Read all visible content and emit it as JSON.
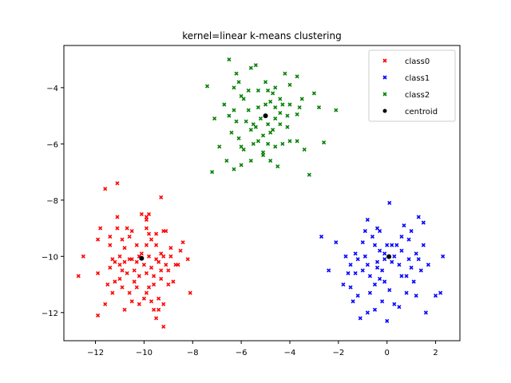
{
  "chart_data": {
    "type": "scatter",
    "title": "kernel=linear k-means clustering",
    "xlabel": "",
    "ylabel": "",
    "xlim": [
      -13.3,
      3.0
    ],
    "ylim": [
      -13.0,
      -2.5
    ],
    "xticks": [
      -12,
      -10,
      -8,
      -6,
      -4,
      -2,
      0,
      2
    ],
    "yticks": [
      -12,
      -10,
      -8,
      -6,
      -4
    ],
    "xtick_labels": [
      "−12",
      "−10",
      "−8",
      "−6",
      "−4",
      "−2",
      "0",
      "2"
    ],
    "ytick_labels": [
      "−12",
      "−10",
      "−8",
      "−6",
      "−4"
    ],
    "grid": false,
    "legend_position": "upper right",
    "series": [
      {
        "name": "class0",
        "color": "#ff0000",
        "marker": "x",
        "points": [
          [
            -11.1,
            -7.4
          ],
          [
            -11.6,
            -7.6
          ],
          [
            -9.3,
            -7.9
          ],
          [
            -11.1,
            -8.6
          ],
          [
            -11.8,
            -9.0
          ],
          [
            -10.1,
            -8.5
          ],
          [
            -9.9,
            -8.6
          ],
          [
            -9.8,
            -8.5
          ],
          [
            -9.9,
            -8.7
          ],
          [
            -10.5,
            -9.1
          ],
          [
            -10.6,
            -9.3
          ],
          [
            -10.3,
            -9.6
          ],
          [
            -11.4,
            -9.6
          ],
          [
            -10.8,
            -9.7
          ],
          [
            -9.9,
            -9.6
          ],
          [
            -9.7,
            -9.4
          ],
          [
            -9.5,
            -9.6
          ],
          [
            -9.2,
            -9.1
          ],
          [
            -9.1,
            -9.1
          ],
          [
            -9.5,
            -9.2
          ],
          [
            -8.4,
            -9.5
          ],
          [
            -9.8,
            -9.2
          ],
          [
            -11.1,
            -9.0
          ],
          [
            -11.9,
            -9.4
          ],
          [
            -12.5,
            -10.0
          ],
          [
            -11.2,
            -10.2
          ],
          [
            -11.0,
            -10.3
          ],
          [
            -10.8,
            -10.2
          ],
          [
            -10.6,
            -10.1
          ],
          [
            -10.3,
            -10.2
          ],
          [
            -10.0,
            -10.3
          ],
          [
            -9.8,
            -10.0
          ],
          [
            -9.5,
            -10.1
          ],
          [
            -9.2,
            -10.0
          ],
          [
            -8.9,
            -10.0
          ],
          [
            -8.5,
            -9.8
          ],
          [
            -8.2,
            -10.1
          ],
          [
            -12.7,
            -10.7
          ],
          [
            -11.9,
            -10.6
          ],
          [
            -11.4,
            -10.4
          ],
          [
            -11.0,
            -10.8
          ],
          [
            -10.7,
            -10.6
          ],
          [
            -10.4,
            -10.9
          ],
          [
            -9.9,
            -10.6
          ],
          [
            -9.6,
            -10.7
          ],
          [
            -9.3,
            -10.5
          ],
          [
            -9.0,
            -10.5
          ],
          [
            -8.7,
            -10.3
          ],
          [
            -11.2,
            -10.9
          ],
          [
            -10.6,
            -11.3
          ],
          [
            -10.3,
            -11.1
          ],
          [
            -9.8,
            -11.1
          ],
          [
            -9.4,
            -11.5
          ],
          [
            -9.0,
            -11.0
          ],
          [
            -8.1,
            -11.3
          ],
          [
            -11.6,
            -11.7
          ],
          [
            -10.8,
            -11.9
          ],
          [
            -9.9,
            -11.3
          ],
          [
            -9.4,
            -11.9
          ],
          [
            -9.7,
            -11.6
          ],
          [
            -11.9,
            -12.1
          ],
          [
            -9.2,
            -12.5
          ],
          [
            -10.2,
            -11.7
          ],
          [
            -9.6,
            -11.9
          ],
          [
            -10.9,
            -10.5
          ],
          [
            -10.1,
            -9.9
          ],
          [
            -9.7,
            -10.4
          ],
          [
            -8.9,
            -9.7
          ],
          [
            -11.3,
            -10.1
          ],
          [
            -10.9,
            -9.4
          ],
          [
            -9.3,
            -10.8
          ],
          [
            -9.6,
            -11.0
          ],
          [
            -10.4,
            -10.5
          ],
          [
            -11.3,
            -11.3
          ],
          [
            -10.5,
            -11.6
          ],
          [
            -8.6,
            -10.3
          ],
          [
            -9.2,
            -11.7
          ],
          [
            -10.7,
            -9.0
          ],
          [
            -11.4,
            -9.3
          ],
          [
            -9.3,
            -9.9
          ],
          [
            -10.2,
            -10.7
          ],
          [
            -11.5,
            -11.0
          ],
          [
            -10.9,
            -11.1
          ],
          [
            -9.5,
            -12.2
          ],
          [
            -10.0,
            -11.5
          ],
          [
            -8.8,
            -10.9
          ],
          [
            -11.0,
            -10.0
          ],
          [
            -9.9,
            -9.0
          ],
          [
            -10.5,
            -10.1
          ],
          [
            -9.4,
            -10.2
          ],
          [
            -10.2,
            -10.0
          ],
          [
            -9.1,
            -10.3
          ]
        ]
      },
      {
        "name": "class1",
        "color": "#0000ff",
        "marker": "x",
        "points": [
          [
            0.1,
            -8.1
          ],
          [
            1.3,
            -8.6
          ],
          [
            -0.8,
            -8.7
          ],
          [
            1.5,
            -8.8
          ],
          [
            -0.4,
            -9.0
          ],
          [
            -0.3,
            -9.1
          ],
          [
            -0.9,
            -9.1
          ],
          [
            0.6,
            -9.3
          ],
          [
            -2.7,
            -9.3
          ],
          [
            0.9,
            -9.4
          ],
          [
            -1.0,
            -9.5
          ],
          [
            -0.5,
            -9.6
          ],
          [
            -0.3,
            -9.8
          ],
          [
            0.2,
            -9.6
          ],
          [
            0.4,
            -9.6
          ],
          [
            0.6,
            -9.8
          ],
          [
            1.2,
            -9.9
          ],
          [
            -1.3,
            -9.9
          ],
          [
            -1.7,
            -10.0
          ],
          [
            0.0,
            -9.6
          ],
          [
            -0.1,
            -9.9
          ],
          [
            0.3,
            -10.0
          ],
          [
            0.9,
            -10.1
          ],
          [
            1.7,
            -10.3
          ],
          [
            2.3,
            -10.0
          ],
          [
            -1.5,
            -10.3
          ],
          [
            -1.2,
            -10.1
          ],
          [
            -0.8,
            -10.3
          ],
          [
            -0.4,
            -10.4
          ],
          [
            0.5,
            -10.3
          ],
          [
            1.0,
            -10.4
          ],
          [
            1.4,
            -10.5
          ],
          [
            -2.4,
            -10.5
          ],
          [
            -1.3,
            -10.6
          ],
          [
            -0.7,
            -10.7
          ],
          [
            -0.3,
            -10.8
          ],
          [
            0.6,
            -10.7
          ],
          [
            1.1,
            -10.9
          ],
          [
            -1.0,
            -10.5
          ],
          [
            -0.5,
            -11.0
          ],
          [
            -1.5,
            -11.1
          ],
          [
            -0.1,
            -10.9
          ],
          [
            0.8,
            -11.3
          ],
          [
            1.2,
            -11.4
          ],
          [
            2.0,
            -11.4
          ],
          [
            2.2,
            -11.3
          ],
          [
            -1.4,
            -11.6
          ],
          [
            -0.2,
            -11.6
          ],
          [
            0.5,
            -11.8
          ],
          [
            -0.8,
            -12.0
          ],
          [
            0.0,
            -12.3
          ],
          [
            1.6,
            -12.0
          ],
          [
            -1.1,
            -12.2
          ],
          [
            -0.5,
            -11.9
          ],
          [
            0.3,
            -11.7
          ],
          [
            -1.8,
            -11.0
          ],
          [
            -0.6,
            -9.3
          ],
          [
            1.0,
            -9.1
          ],
          [
            -2.1,
            -9.5
          ],
          [
            0.8,
            -10.7
          ],
          [
            -0.2,
            -10.5
          ],
          [
            0.1,
            -11.2
          ],
          [
            -1.6,
            -10.6
          ],
          [
            1.5,
            -9.6
          ],
          [
            -0.9,
            -10.0
          ],
          [
            0.2,
            -10.2
          ],
          [
            -0.1,
            -10.1
          ],
          [
            -0.7,
            -11.3
          ],
          [
            1.3,
            -10.1
          ],
          [
            -1.2,
            -11.4
          ],
          [
            0.7,
            -8.9
          ],
          [
            -0.4,
            -10.2
          ]
        ]
      },
      {
        "name": "class2",
        "color": "#008000",
        "marker": "x",
        "points": [
          [
            -6.5,
            -3.0
          ],
          [
            -5.4,
            -3.2
          ],
          [
            -3.7,
            -3.6
          ],
          [
            -5.0,
            -3.8
          ],
          [
            -4.2,
            -3.5
          ],
          [
            -6.2,
            -3.5
          ],
          [
            -4.0,
            -3.9
          ],
          [
            -5.6,
            -3.3
          ],
          [
            -6.1,
            -3.8
          ],
          [
            -6.3,
            -4.0
          ],
          [
            -4.6,
            -4.0
          ],
          [
            -7.4,
            -3.95
          ],
          [
            -5.3,
            -4.1
          ],
          [
            -4.7,
            -4.2
          ],
          [
            -3.0,
            -4.2
          ],
          [
            -6.0,
            -4.3
          ],
          [
            -4.4,
            -4.4
          ],
          [
            -4.0,
            -4.6
          ],
          [
            -5.9,
            -4.4
          ],
          [
            -5.0,
            -4.6
          ],
          [
            -4.8,
            -4.5
          ],
          [
            -6.7,
            -4.6
          ],
          [
            -7.1,
            -5.1
          ],
          [
            -6.3,
            -4.8
          ],
          [
            -6.5,
            -5.0
          ],
          [
            -5.7,
            -4.8
          ],
          [
            -5.3,
            -4.7
          ],
          [
            -4.6,
            -4.7
          ],
          [
            -3.6,
            -4.7
          ],
          [
            -2.8,
            -4.7
          ],
          [
            -3.7,
            -4.95
          ],
          [
            -2.1,
            -4.8
          ],
          [
            -4.4,
            -4.9
          ],
          [
            -4.1,
            -5.0
          ],
          [
            -5.8,
            -5.2
          ],
          [
            -5.5,
            -5.3
          ],
          [
            -5.2,
            -5.1
          ],
          [
            -4.6,
            -5.1
          ],
          [
            -4.9,
            -5.3
          ],
          [
            -4.4,
            -5.3
          ],
          [
            -5.6,
            -5.5
          ],
          [
            -5.1,
            -5.7
          ],
          [
            -4.7,
            -5.5
          ],
          [
            -6.4,
            -5.6
          ],
          [
            -6.1,
            -5.8
          ],
          [
            -5.3,
            -5.9
          ],
          [
            -4.8,
            -5.6
          ],
          [
            -4.0,
            -5.9
          ],
          [
            -3.7,
            -5.9
          ],
          [
            -4.6,
            -6.1
          ],
          [
            -5.5,
            -6.0
          ],
          [
            -6.0,
            -6.1
          ],
          [
            -6.9,
            -6.1
          ],
          [
            -5.1,
            -6.3
          ],
          [
            -5.1,
            -6.4
          ],
          [
            -2.6,
            -5.95
          ],
          [
            -3.4,
            -6.2
          ],
          [
            -4.8,
            -6.6
          ],
          [
            -6.6,
            -6.6
          ],
          [
            -6.0,
            -6.75
          ],
          [
            -7.2,
            -7.0
          ],
          [
            -4.5,
            -6.8
          ],
          [
            -3.2,
            -7.1
          ],
          [
            -6.3,
            -6.9
          ],
          [
            -4.3,
            -4.6
          ],
          [
            -5.7,
            -4.1
          ],
          [
            -4.1,
            -5.4
          ],
          [
            -5.9,
            -6.2
          ],
          [
            -4.9,
            -4.1
          ],
          [
            -5.4,
            -5.4
          ],
          [
            -4.3,
            -6.0
          ],
          [
            -6.2,
            -5.2
          ],
          [
            -3.5,
            -4.4
          ],
          [
            -4.9,
            -6.0
          ],
          [
            -5.6,
            -6.6
          ]
        ]
      },
      {
        "name": "centroid",
        "color": "#000000",
        "marker": "o",
        "points": [
          [
            -10.1,
            -10.07
          ],
          [
            0.08,
            -10.01
          ],
          [
            -5.0,
            -5.0
          ]
        ]
      }
    ]
  },
  "legend": {
    "items": [
      {
        "label": "class0",
        "color": "#ff0000",
        "marker": "x"
      },
      {
        "label": "class1",
        "color": "#0000ff",
        "marker": "x"
      },
      {
        "label": "class2",
        "color": "#008000",
        "marker": "x"
      },
      {
        "label": "centroid",
        "color": "#000000",
        "marker": "o"
      }
    ]
  }
}
